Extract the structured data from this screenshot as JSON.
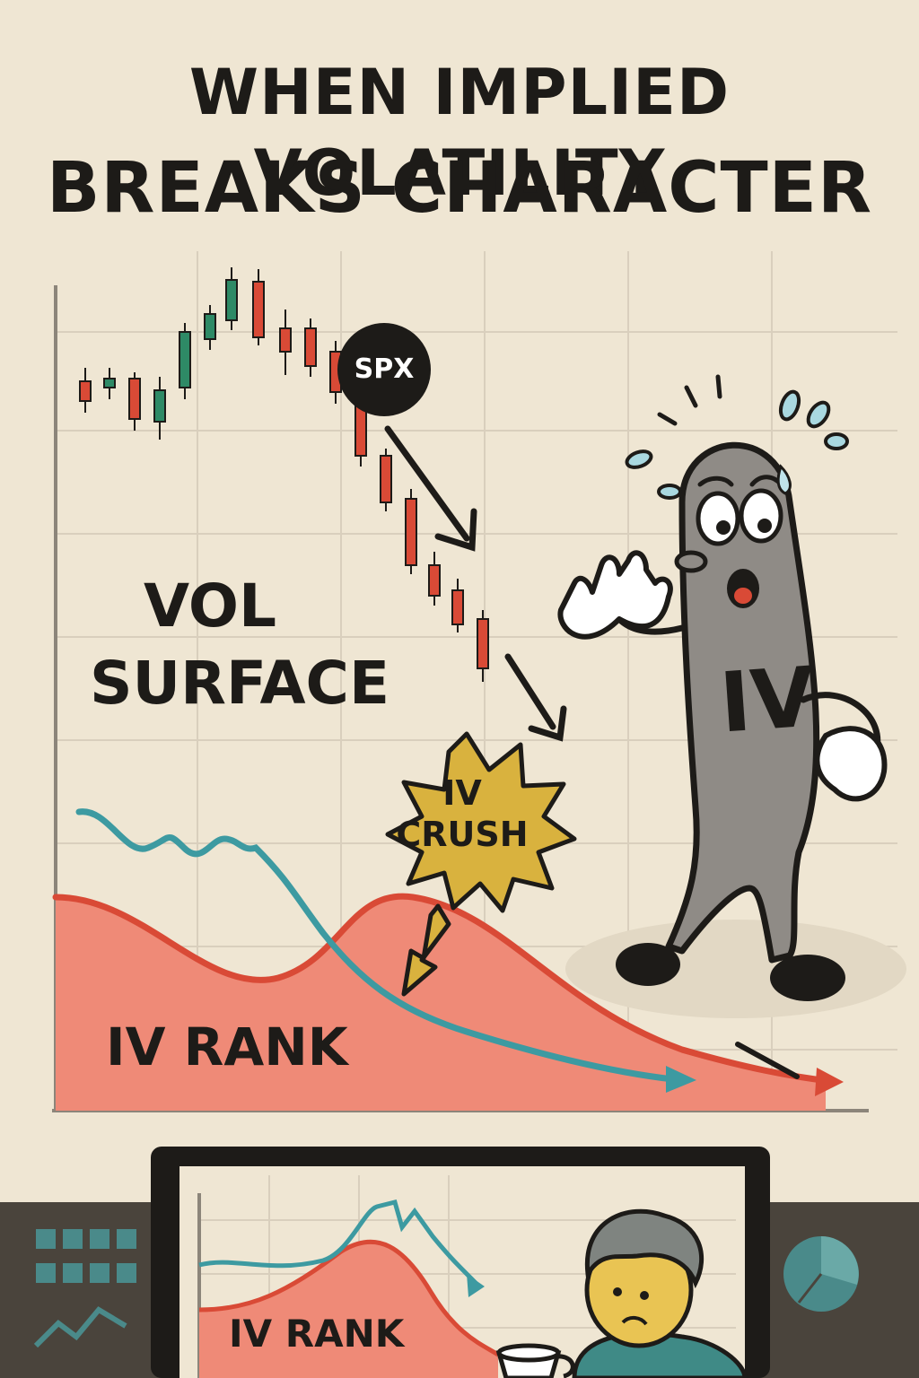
{
  "title": {
    "line1": "WHEN IMPLIED VOLATILITY",
    "line2": "BREAKS CHARACTER"
  },
  "labels": {
    "spx": "SPX",
    "vol_surface_line1": "VOL",
    "vol_surface_line2": "SURFACE",
    "iv_crush_line1": "IV",
    "iv_crush_line2": "CRUSH",
    "iv_rank": "IV RANK",
    "character": "IV",
    "monitor_iv_rank": "IV RANK"
  },
  "colors": {
    "background": "#efe6d3",
    "ink": "#1d1b18",
    "candle_up": "#2e8a66",
    "candle_down": "#d94a36",
    "iv_rank_fill": "#ef8a77",
    "iv_rank_line": "#d94a36",
    "vol_line": "#3d9aa1",
    "burst": "#d9b23e",
    "character": "#8f8b86",
    "desk": "#4a443c"
  },
  "icons": [
    "sweat-drop-icon",
    "arrow-icon",
    "grid-icon",
    "pie-chart-icon",
    "coffee-cup-icon"
  ]
}
